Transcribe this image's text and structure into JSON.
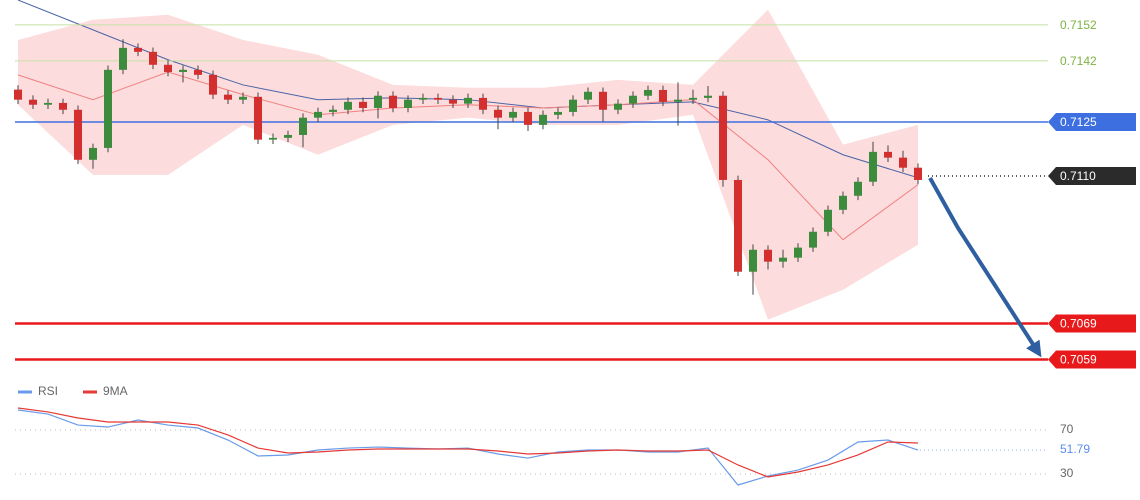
{
  "chart_data": [
    {
      "type": "candlestick",
      "ylim": [
        0.70547,
        0.71589
      ],
      "up_color": "#3d8b3d",
      "down_color": "#d32f2f",
      "open": [
        0.7134,
        0.71312,
        0.71298,
        0.71303,
        0.71284,
        0.71145,
        0.71178,
        0.71395,
        0.71456,
        0.71445,
        0.71409,
        0.71389,
        0.71395,
        0.71381,
        0.71326,
        0.71312,
        0.7132,
        0.71201,
        0.71206,
        0.71214,
        0.71262,
        0.71278,
        0.71284,
        0.71306,
        0.71289,
        0.71323,
        0.71289,
        0.71312,
        0.71317,
        0.71312,
        0.71301,
        0.71317,
        0.71284,
        0.71262,
        0.71278,
        0.71242,
        0.7127,
        0.71278,
        0.71312,
        0.71334,
        0.71284,
        0.71301,
        0.71323,
        0.71339,
        0.71306,
        0.71312,
        0.71317,
        0.71323,
        0.71089,
        0.70834,
        0.70895,
        0.70862,
        0.70873,
        0.70901,
        0.70945,
        0.71006,
        0.71045,
        0.71084,
        0.71167,
        0.71151,
        0.71123
      ],
      "high": [
        0.71352,
        0.71324,
        0.71315,
        0.71315,
        0.71296,
        0.7119,
        0.71407,
        0.7148,
        0.71468,
        0.71457,
        0.71421,
        0.71407,
        0.71407,
        0.71393,
        0.71338,
        0.71332,
        0.71332,
        0.71218,
        0.71226,
        0.71274,
        0.7129,
        0.71296,
        0.71318,
        0.71318,
        0.71335,
        0.71335,
        0.71324,
        0.71329,
        0.71329,
        0.71324,
        0.71329,
        0.71329,
        0.71296,
        0.7129,
        0.7129,
        0.71282,
        0.7129,
        0.71324,
        0.71346,
        0.71346,
        0.71313,
        0.71335,
        0.71351,
        0.71351,
        0.7136,
        0.7134,
        0.7135,
        0.71335,
        0.71101,
        0.7091,
        0.70907,
        0.70895,
        0.70913,
        0.70957,
        0.71018,
        0.71057,
        0.71096,
        0.71195,
        0.71185,
        0.7117,
        0.71135
      ],
      "low": [
        0.713,
        0.71286,
        0.71286,
        0.71272,
        0.71133,
        0.7112,
        0.71166,
        0.71383,
        0.71433,
        0.71397,
        0.71377,
        0.7136,
        0.71369,
        0.71314,
        0.713,
        0.713,
        0.71189,
        0.71189,
        0.71194,
        0.7118,
        0.7125,
        0.71266,
        0.71272,
        0.71277,
        0.7126,
        0.71277,
        0.71277,
        0.713,
        0.713,
        0.71289,
        0.71289,
        0.71272,
        0.7123,
        0.7125,
        0.71225,
        0.7123,
        0.71258,
        0.71266,
        0.713,
        0.7125,
        0.71272,
        0.71289,
        0.71311,
        0.71294,
        0.7124,
        0.713,
        0.71305,
        0.7107,
        0.70822,
        0.7077,
        0.7084,
        0.70845,
        0.70861,
        0.70889,
        0.70933,
        0.70994,
        0.71033,
        0.71072,
        0.71139,
        0.71111,
        0.71077
      ],
      "close": [
        0.71312,
        0.71298,
        0.71303,
        0.71284,
        0.71145,
        0.71178,
        0.71395,
        0.71456,
        0.71445,
        0.71409,
        0.71389,
        0.71395,
        0.71381,
        0.71326,
        0.71312,
        0.7132,
        0.71201,
        0.71206,
        0.71214,
        0.71262,
        0.71278,
        0.71284,
        0.71306,
        0.71289,
        0.71323,
        0.71289,
        0.71312,
        0.71317,
        0.71312,
        0.71301,
        0.71317,
        0.71284,
        0.71262,
        0.71278,
        0.71242,
        0.7127,
        0.71278,
        0.71312,
        0.71334,
        0.71284,
        0.71301,
        0.71323,
        0.71339,
        0.71306,
        0.71312,
        0.71317,
        0.71323,
        0.71089,
        0.70834,
        0.70895,
        0.70862,
        0.70873,
        0.70901,
        0.70945,
        0.71006,
        0.71045,
        0.71084,
        0.71167,
        0.71151,
        0.71123,
        0.71089
      ],
      "band_color": "#fbd3d3",
      "band_upper": [
        0.71478,
        0.71534,
        0.71548,
        0.71478,
        0.71437,
        0.71353,
        0.71345,
        0.71345,
        0.71367,
        0.71353,
        0.71562,
        0.71187,
        0.71242
      ],
      "band_lower": [
        0.71298,
        0.71103,
        0.71103,
        0.71242,
        0.71159,
        0.71242,
        0.71262,
        0.71242,
        0.71242,
        0.7127,
        0.70701,
        0.70784,
        0.70909
      ],
      "lines": [
        {
          "color": "#4a64a8",
          "values": [
            0.71589,
            0.71506,
            0.71423,
            0.71353,
            0.71312,
            0.71317,
            0.71312,
            0.71289,
            0.71298,
            0.71306,
            0.71256,
            0.71159,
            0.71095
          ]
        },
        {
          "color": "#f08080",
          "values": [
            0.71381,
            0.71312,
            0.71389,
            0.71326,
            0.7127,
            0.71289,
            0.71298,
            0.71289,
            0.71298,
            0.71312,
            0.71145,
            0.70923,
            0.71076
          ]
        }
      ],
      "levels": [
        {
          "value": 0.7152,
          "color": "#7cb342",
          "style": "text",
          "line": "thin"
        },
        {
          "value": 0.7142,
          "color": "#7cb342",
          "style": "text",
          "line": "thin"
        },
        {
          "value": 0.7125,
          "color": "#3e6fe0",
          "style": "box",
          "line": "solid"
        },
        {
          "value": 0.711,
          "label": "0.7110",
          "color": "#2b2b2b",
          "style": "box",
          "line": "dotted"
        },
        {
          "value": 0.7069,
          "color": "#e8191b",
          "style": "box",
          "line": "thick"
        },
        {
          "value": 0.7059,
          "color": "#e8191b",
          "style": "box",
          "line": "thick"
        }
      ]
    },
    {
      "type": "line",
      "ylim": [
        10,
        100
      ],
      "yticks": [
        70,
        30
      ],
      "last_value": 51.79,
      "legend": "top-left",
      "series": [
        {
          "name": "RSI",
          "color": "#6a9be8",
          "values": [
            88.2,
            84.5,
            74.5,
            72.7,
            79.1,
            74.5,
            71.8,
            60.9,
            46.4,
            47.3,
            51.8,
            53.6,
            54.5,
            53.6,
            52.7,
            53.6,
            48.2,
            44.5,
            50.0,
            51.8,
            51.8,
            50.0,
            50.0,
            53.6,
            20.0,
            28.2,
            33.6,
            42.7,
            59.1,
            60.9,
            51.8
          ]
        },
        {
          "name": "9MA",
          "color": "#e53935",
          "values": [
            90.0,
            86.4,
            80.9,
            77.3,
            77.3,
            77.3,
            74.5,
            65.5,
            53.6,
            49.1,
            50.0,
            51.8,
            52.7,
            52.7,
            52.7,
            52.7,
            50.9,
            48.2,
            49.1,
            50.9,
            51.8,
            50.9,
            50.9,
            51.8,
            38.2,
            27.3,
            31.8,
            38.2,
            47.3,
            59.1,
            58.2
          ]
        }
      ]
    }
  ]
}
